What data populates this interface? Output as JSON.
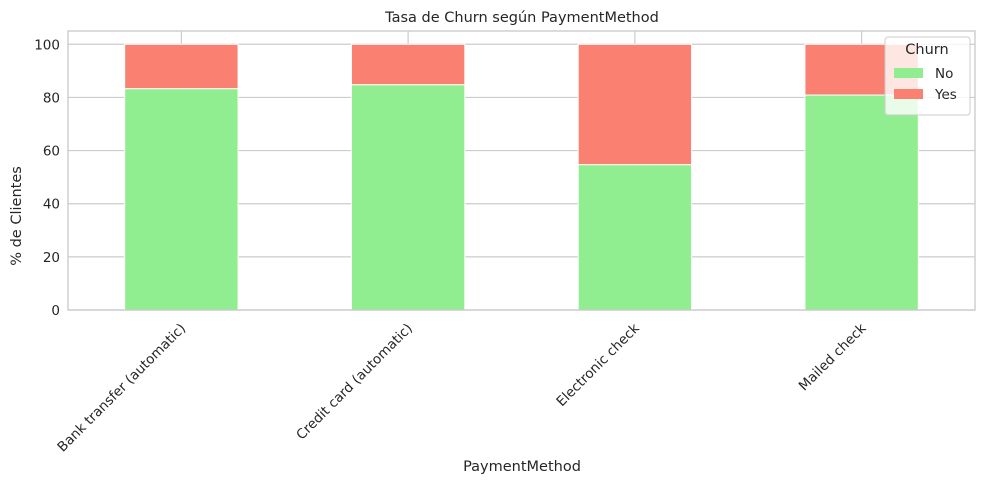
{
  "chart_data": {
    "type": "bar",
    "stacked": true,
    "title": "Tasa de Churn según PaymentMethod",
    "xlabel": "PaymentMethod",
    "ylabel": "% de Clientes",
    "ylim": [
      0,
      105
    ],
    "yticks": [
      "0",
      "20",
      "40",
      "60",
      "80",
      "100"
    ],
    "categories": [
      "Bank transfer (automatic)",
      "Credit card (automatic)",
      "Electronic check",
      "Mailed check"
    ],
    "series": [
      {
        "name": "No",
        "values": [
          83.3,
          84.8,
          54.7,
          80.9
        ],
        "color": "#90ee90"
      },
      {
        "name": "Yes",
        "values": [
          16.7,
          15.2,
          45.3,
          19.1
        ],
        "color": "#fa8072"
      }
    ],
    "legend": {
      "title": "Churn",
      "position": "top-right"
    },
    "grid": true
  }
}
